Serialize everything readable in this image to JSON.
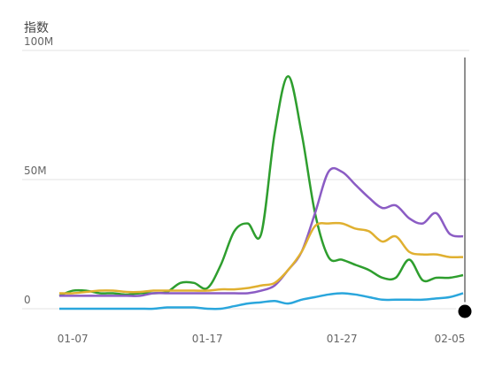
{
  "chart_data": {
    "type": "line",
    "title": "指数",
    "categories": [
      null,
      "01-07",
      null,
      null,
      null,
      null,
      null,
      null,
      null,
      null,
      null,
      "01-17",
      null,
      null,
      null,
      null,
      null,
      null,
      null,
      null,
      null,
      "01-27",
      null,
      null,
      null,
      null,
      null,
      null,
      null,
      null,
      "02-05"
    ],
    "series": [
      {
        "name": null,
        "color": "#2e9e2e",
        "values": [
          5,
          7,
          7,
          6,
          6,
          5.5,
          6,
          6,
          6.5,
          10,
          10,
          8,
          17,
          30,
          33,
          29,
          68,
          90,
          68,
          37,
          20,
          19,
          17,
          15,
          12,
          12,
          19,
          11,
          12,
          12,
          13
        ]
      },
      {
        "name": null,
        "color": "#8b5cc4",
        "values": [
          5,
          5,
          5,
          5,
          5,
          5,
          5,
          6,
          6,
          6,
          6,
          6,
          6,
          6,
          6,
          7,
          9,
          15,
          22,
          37,
          53,
          53,
          48,
          43,
          39,
          40,
          35,
          33,
          37,
          29,
          28
        ]
      },
      {
        "name": null,
        "color": "#e0b030",
        "values": [
          6,
          6,
          6.5,
          7,
          7,
          6.5,
          6.5,
          7,
          7,
          7,
          7,
          7,
          7.5,
          7.5,
          8,
          9,
          10,
          15,
          22,
          32,
          33,
          33,
          31,
          30,
          26,
          28,
          22,
          21,
          21,
          20,
          20
        ]
      },
      {
        "name": null,
        "color": "#2aa6dc",
        "values": [
          0,
          0,
          0,
          0,
          0,
          0,
          0,
          0,
          0.5,
          0.5,
          0.5,
          0,
          0,
          1,
          2,
          2.5,
          3,
          2,
          3.5,
          4.5,
          5.5,
          6,
          5.5,
          4.5,
          3.5,
          3.5,
          3.5,
          3.5,
          4,
          4.5,
          6
        ]
      }
    ],
    "ylim": [
      0,
      100
    ],
    "yticks": [
      0,
      {
        "value": 50,
        "label": "50M"
      },
      {
        "value": 100,
        "label": "100M"
      }
    ],
    "grid": true
  }
}
